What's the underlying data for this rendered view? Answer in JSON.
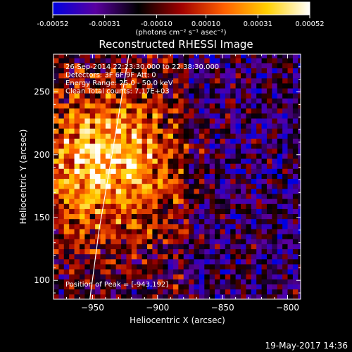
{
  "window": {
    "timestamp": "19-May-2017 14:36"
  },
  "colorbar": {
    "ticks": [
      "-0.00052",
      "-0.00031",
      "-0.00010",
      "0.00010",
      "0.00031",
      "0.00052"
    ],
    "tick_values": [
      -0.00052,
      -0.00031,
      -0.0001,
      0.0001,
      0.00031,
      0.00052
    ],
    "units": "(photons cm⁻² s⁻¹ asec⁻²)",
    "colormap": [
      "#0000e0",
      "#5a00a0",
      "#000000",
      "#a00000",
      "#ff6000",
      "#ffd000",
      "#ffffff"
    ]
  },
  "chart_data": {
    "type": "heatmap",
    "title": "Reconstructed RHESSI Image",
    "xlabel": "Heliocentric X (arcsec)",
    "ylabel": "Heliocentric Y (arcsec)",
    "xlim": [
      -980,
      -790
    ],
    "ylim": [
      85,
      280
    ],
    "xticks": [
      -950,
      -900,
      -850,
      -800
    ],
    "yticks": [
      100,
      150,
      200,
      250
    ],
    "xtick_labels": [
      "−950",
      "−900",
      "−850",
      "−800"
    ],
    "ytick_labels": [
      "100",
      "150",
      "200",
      "250"
    ],
    "annotations": [
      "26-Sep-2014 22:23:30.000 to 22:38:30.000",
      "Detectors: 3F 6F 9F  Att: 0",
      "Energy Range: 25.0 - 50.0 keV",
      "Clean    Total counts: 7.17E+03"
    ],
    "peak_label": "Position of Peak = [-943,192]",
    "peak": [
      -943,
      192
    ],
    "limb": [
      [
        -952,
        85
      ],
      [
        -945,
        140
      ],
      [
        -935,
        200
      ],
      [
        -922,
        280
      ]
    ],
    "pixel_size_arcsec": 4
  }
}
